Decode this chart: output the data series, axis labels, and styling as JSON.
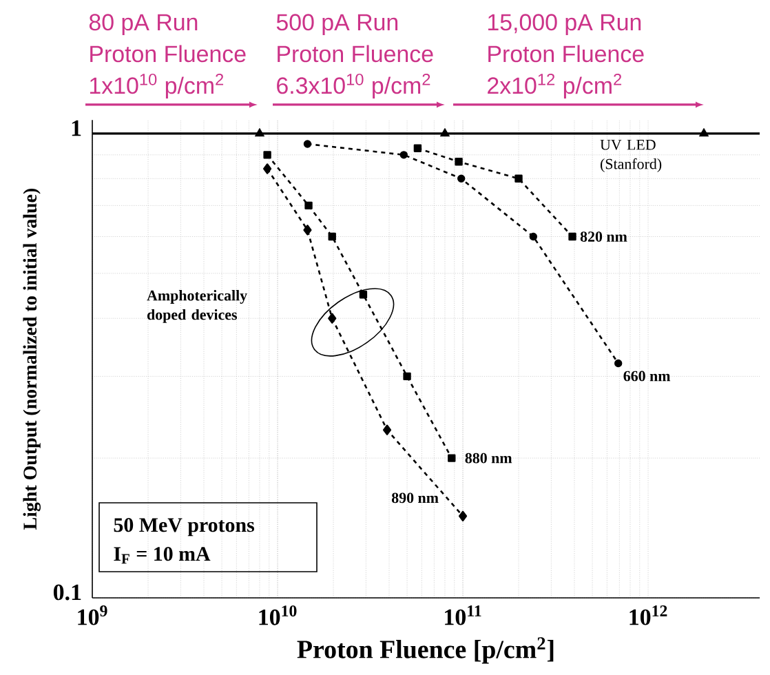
{
  "chart_data": {
    "type": "line",
    "log": "xy",
    "grid": true,
    "xlabel": "Proton Fluence [p/cm$^{2}$]",
    "ylabel": "Light Output (normalized to initial value)",
    "xlim": [
      1000000000.0,
      4000000000000.0
    ],
    "ylim": [
      0.1,
      1.07
    ],
    "xticks": [
      {
        "value": 1000000000.0,
        "label": "10$^{9}$"
      },
      {
        "value": 10000000000.0,
        "label": "10$^{10}$"
      },
      {
        "value": 100000000000.0,
        "label": "10$^{11}$"
      },
      {
        "value": 1000000000000.0,
        "label": "10$^{12}$"
      }
    ],
    "yticks": [
      0.1,
      1
    ],
    "ref_lines": [
      {
        "axis": "y",
        "value": 1,
        "color": "#000000",
        "line_style": "solid"
      }
    ],
    "series": [
      {
        "name": "820 nm",
        "color": "#000000",
        "marker": "square",
        "line_style": "dashed",
        "x": [
          57000000000.0,
          95000000000.0,
          200000000000.0,
          390000000000.0
        ],
        "values": [
          0.93,
          0.87,
          0.8,
          0.6
        ]
      },
      {
        "name": "660 nm",
        "color": "#000000",
        "marker": "circle",
        "line_style": "dashed",
        "x": [
          14500000000.0,
          48000000000.0,
          98000000000.0,
          240000000000.0,
          690000000000.0
        ],
        "values": [
          0.95,
          0.9,
          0.8,
          0.6,
          0.32
        ]
      },
      {
        "name": "880 nm",
        "color": "#000000",
        "marker": "square",
        "line_style": "dashed",
        "x": [
          8800000000.0,
          14700000000.0,
          19700000000.0,
          29000000000.0,
          50000000000.0,
          87000000000.0
        ],
        "values": [
          0.9,
          0.7,
          0.6,
          0.45,
          0.3,
          0.2
        ]
      },
      {
        "name": "890 nm",
        "color": "#000000",
        "marker": "diamond",
        "line_style": "dashed",
        "x": [
          8800000000.0,
          14500000000.0,
          19700000000.0,
          39000000000.0,
          100000000000.0
        ],
        "values": [
          0.84,
          0.62,
          0.4,
          0.23,
          0.15
        ]
      },
      {
        "type": "scatter",
        "color": "#000000",
        "marker": "triangle",
        "x": [
          8000000000.0,
          80000000000.0,
          2000000000000.0
        ],
        "values": [
          1,
          1,
          1
        ]
      }
    ],
    "annotations": [
      "80 pA Run",
      "Proton Fluence",
      "1x10$^{10}$ p/cm$^{2}$",
      "500 pA Run",
      "Proton Fluence",
      "6.3x10$^{10}$ p/cm$^{2}$",
      "15,000 pA Run",
      "Proton Fluence",
      "2x10$^{12}$ p/cm$^{2}$",
      "UV LED (Stanford)",
      "Amphoterically doped devices",
      "50 MeV protons",
      "I$_{F}$ = 10 mA"
    ]
  }
}
